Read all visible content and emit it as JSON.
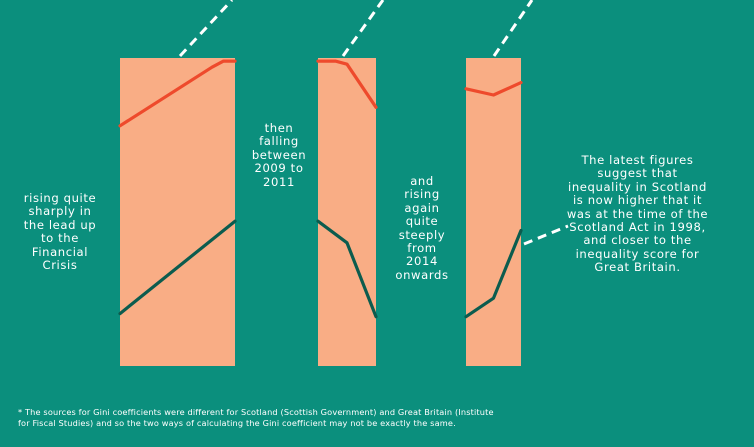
{
  "captions": {
    "rising": "rising quite\nsharply in\nthe lead up\nto the\nFinancial\nCrisis",
    "falling": "then\nfalling\nbetween\n2009 to\n2011",
    "steep": "and\nrising\nagain\nquite\nsteeply\nfrom\n2014\nonwards",
    "latest": "The latest figures\nsuggest that\ninequality in Scotland\nis now higher that it\nwas at the time of the\nScotland Act in 1998,\nand closer to the\ninequality score for\nGreat Britain."
  },
  "footnote": "* The sources for Gini coefficients were different for Scotland (Scottish Government) and Great Britain (Institute\nfor Fiscal Studies) and so the two ways of calculating the Gini coefficient may not be exactly the same.",
  "colors": {
    "background": "#0b8f7d",
    "highlight": "#f9ad85",
    "great_britain_line": "#ee4a2c",
    "scotland_line": "#0c5c4e",
    "text": "#ffffff"
  },
  "chart_data": {
    "type": "line",
    "title": "",
    "xlabel": "",
    "ylabel": "",
    "ylim": [
      0,
      1
    ],
    "panels": [
      {
        "series": [
          {
            "color": "#ee4a2c",
            "x": [
              0,
              0.8,
              0.9,
              1.0
            ],
            "values": [
              0.78,
              0.97,
              0.99,
              0.99
            ]
          },
          {
            "color": "#0c5c4e",
            "x": [
              0,
              1.0
            ],
            "values": [
              0.17,
              0.47
            ]
          }
        ]
      },
      {
        "series": [
          {
            "color": "#ee4a2c",
            "x": [
              0,
              0.3,
              0.5,
              1.0
            ],
            "values": [
              0.99,
              0.99,
              0.98,
              0.84
            ]
          },
          {
            "color": "#0c5c4e",
            "x": [
              0,
              0.5,
              1.0
            ],
            "values": [
              0.47,
              0.4,
              0.16
            ]
          }
        ]
      },
      {
        "series": [
          {
            "color": "#ee4a2c",
            "x": [
              0,
              0.5,
              1.0
            ],
            "values": [
              0.9,
              0.88,
              0.92
            ]
          },
          {
            "color": "#0c5c4e",
            "x": [
              0,
              0.5,
              1.0
            ],
            "values": [
              0.16,
              0.22,
              0.44
            ]
          }
        ]
      }
    ]
  }
}
